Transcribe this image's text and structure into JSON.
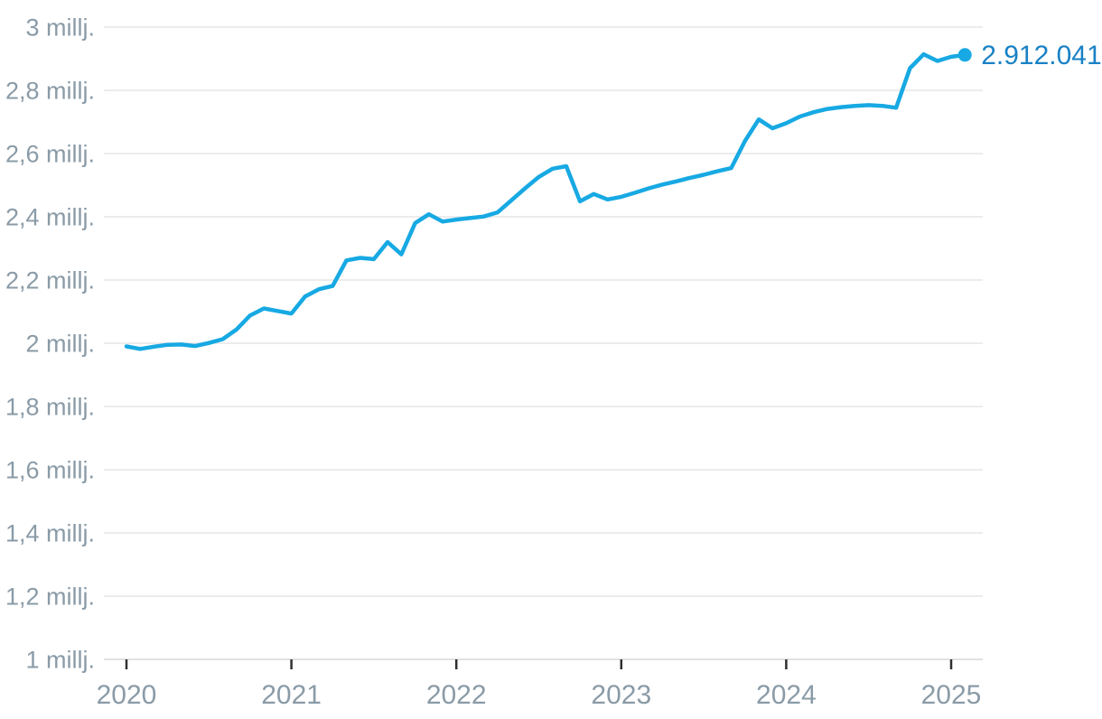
{
  "chart_data": {
    "type": "line",
    "title": "",
    "unit": "millj.",
    "frequency": "monthly",
    "x_start": "2020-01",
    "x_end": "2025-02",
    "ylim": [
      1.0,
      3.0
    ],
    "grid": "horizontal",
    "legend": "none",
    "series": [
      {
        "name": "value",
        "values": [
          1.99,
          1.982,
          1.989,
          1.995,
          1.996,
          1.991,
          2.001,
          2.013,
          2.043,
          2.088,
          2.11,
          2.102,
          2.094,
          2.148,
          2.171,
          2.181,
          2.262,
          2.27,
          2.266,
          2.32,
          2.281,
          2.38,
          2.408,
          2.385,
          2.391,
          2.396,
          2.401,
          2.414,
          2.452,
          2.49,
          2.526,
          2.552,
          2.56,
          2.449,
          2.472,
          2.455,
          2.463,
          2.476,
          2.49,
          2.502,
          2.512,
          2.523,
          2.533,
          2.544,
          2.554,
          2.64,
          2.708,
          2.68,
          2.696,
          2.717,
          2.731,
          2.741,
          2.747,
          2.751,
          2.753,
          2.751,
          2.745,
          2.87,
          2.914,
          2.893,
          2.906,
          2.912041
        ]
      }
    ],
    "y_ticks": [
      {
        "value": 3.0,
        "label": "3 millj."
      },
      {
        "value": 2.8,
        "label": "2,8 millj."
      },
      {
        "value": 2.6,
        "label": "2,6 millj."
      },
      {
        "value": 2.4,
        "label": "2,4 millj."
      },
      {
        "value": 2.2,
        "label": "2,2 millj."
      },
      {
        "value": 2.0,
        "label": "2 millj."
      },
      {
        "value": 1.8,
        "label": "1,8 millj."
      },
      {
        "value": 1.6,
        "label": "1,6 millj."
      },
      {
        "value": 1.4,
        "label": "1,4 millj."
      },
      {
        "value": 1.2,
        "label": "1,2 millj."
      },
      {
        "value": 1.0,
        "label": "1 millj."
      }
    ],
    "x_ticks": [
      {
        "month_index": 0,
        "label": "2020"
      },
      {
        "month_index": 12,
        "label": "2021"
      },
      {
        "month_index": 24,
        "label": "2022"
      },
      {
        "month_index": 36,
        "label": "2023"
      },
      {
        "month_index": 48,
        "label": "2024"
      },
      {
        "month_index": 60,
        "label": "2025"
      }
    ],
    "end_label": "2.912.041",
    "colors": {
      "line": "#17A9E3",
      "end_dot": "#17A9E3",
      "end_label_text": "#1981C5",
      "axis_text": "#8A9BA7",
      "gridline": "#E6E6E6",
      "axis_line": "#D9D9D9",
      "tick": "#2F2F2F",
      "background": "#FFFFFF"
    }
  }
}
